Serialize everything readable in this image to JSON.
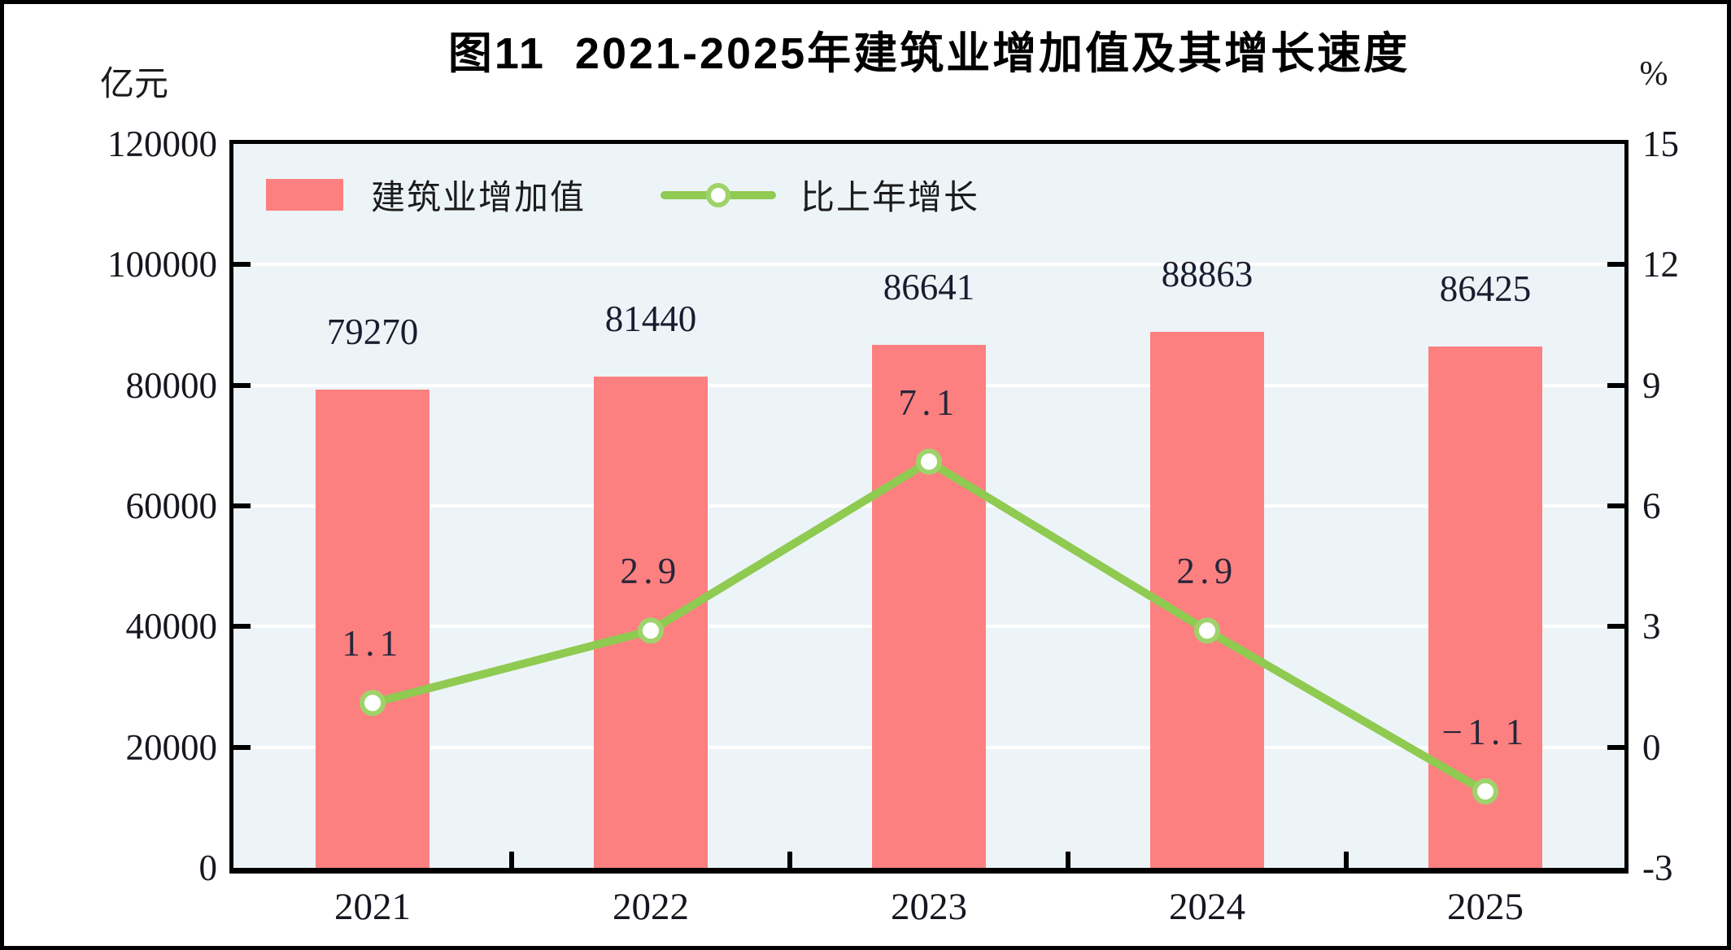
{
  "chart_data": {
    "type": "combo_bar_line",
    "title": "图11  2021-2025年建筑业增加值及其增长速度",
    "categories": [
      "2021",
      "2022",
      "2023",
      "2024",
      "2025"
    ],
    "series": [
      {
        "name": "建筑业增加值",
        "type": "bar",
        "axis": "left",
        "color": "#FD8080",
        "values": [
          79270,
          81440,
          86641,
          88863,
          86425
        ],
        "data_labels": [
          "79270",
          "81440",
          "86641",
          "88863",
          "86425"
        ]
      },
      {
        "name": "比上年增长",
        "type": "line",
        "axis": "right",
        "color": "#8FCA51",
        "marker": "circle-white-fill-green-ring",
        "marker_ring_color": "#9ED36B",
        "values": [
          1.1,
          2.9,
          7.1,
          2.9,
          -1.1
        ],
        "data_labels": [
          "1.1",
          "2.9",
          "7.1",
          "2.9",
          "−1.1"
        ]
      }
    ],
    "axis_left": {
      "unit": "亿元",
      "min": 0,
      "max": 120000,
      "tick_step": 20000,
      "tick_labels": [
        "120000",
        "100000",
        "80000",
        "60000",
        "40000",
        "20000",
        "0"
      ]
    },
    "axis_right": {
      "unit": "%",
      "min": -3,
      "max": 15,
      "tick_step": 3,
      "tick_labels": [
        "15",
        "12",
        "9",
        "6",
        "3",
        "0",
        "-3"
      ]
    },
    "legend": {
      "position": "top-left-inside",
      "items": [
        "建筑业增加值",
        "比上年增长"
      ]
    },
    "grid": {
      "horizontal": true,
      "color": "#FFFFFF"
    },
    "plot_background": "#EDF4F8",
    "frame_color": "#000000"
  }
}
